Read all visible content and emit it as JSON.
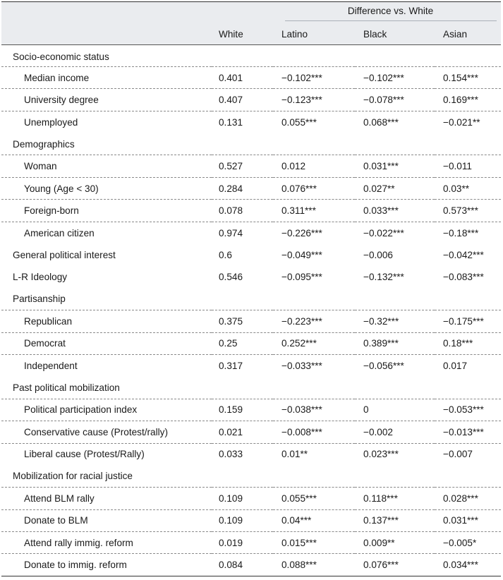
{
  "header": {
    "group_label": "Difference vs. White",
    "col_white": "White",
    "col_latino": "Latino",
    "col_black": "Black",
    "col_asian": "Asian"
  },
  "rows": [
    {
      "type": "group",
      "label": "Socio-economic status"
    },
    {
      "type": "item",
      "label": "Median income",
      "white": "0.401",
      "latino": "−0.102***",
      "black": "−0.102***",
      "asian": "0.154***"
    },
    {
      "type": "item",
      "label": "University degree",
      "white": "0.407",
      "latino": "−0.123***",
      "black": "−0.078***",
      "asian": "0.169***"
    },
    {
      "type": "item",
      "label": "Unemployed",
      "white": "0.131",
      "latino": "0.055***",
      "black": "0.068***",
      "asian": "−0.021**"
    },
    {
      "type": "group",
      "label": "Demographics"
    },
    {
      "type": "item",
      "label": "Woman",
      "white": "0.527",
      "latino": "0.012",
      "black": "0.031***",
      "asian": "−0.011"
    },
    {
      "type": "item",
      "label": "Young (Age < 30)",
      "white": "0.284",
      "latino": "0.076***",
      "black": "0.027**",
      "asian": "0.03**"
    },
    {
      "type": "item",
      "label": "Foreign-born",
      "white": "0.078",
      "latino": "0.311***",
      "black": "0.033***",
      "asian": "0.573***"
    },
    {
      "type": "item",
      "label": "American citizen",
      "white": "0.974",
      "latino": "−0.226***",
      "black": "−0.022***",
      "asian": "−0.18***"
    },
    {
      "type": "group-value",
      "label": "General political interest",
      "white": "0.6",
      "latino": "−0.049***",
      "black": "−0.006",
      "asian": "−0.042***"
    },
    {
      "type": "group-value",
      "label": "L-R Ideology",
      "white": "0.546",
      "latino": "−0.095***",
      "black": "−0.132***",
      "asian": "−0.083***"
    },
    {
      "type": "group",
      "label": "Partisanship"
    },
    {
      "type": "item",
      "label": "Republican",
      "white": "0.375",
      "latino": "−0.223***",
      "black": "−0.32***",
      "asian": "−0.175***"
    },
    {
      "type": "item",
      "label": "Democrat",
      "white": "0.25",
      "latino": "0.252***",
      "black": "0.389***",
      "asian": "0.18***"
    },
    {
      "type": "item",
      "label": "Independent",
      "white": "0.317",
      "latino": "−0.033***",
      "black": "−0.056***",
      "asian": "0.017"
    },
    {
      "type": "group",
      "label": "Past political mobilization"
    },
    {
      "type": "item",
      "label": "Political participation index",
      "white": "0.159",
      "latino": "−0.038***",
      "black": "0",
      "asian": "−0.053***"
    },
    {
      "type": "item",
      "label": "Conservative cause (Protest/rally)",
      "white": "0.021",
      "latino": "−0.008***",
      "black": "−0.002",
      "asian": "−0.013***"
    },
    {
      "type": "item",
      "label": "Liberal cause (Protest/Rally)",
      "white": "0.033",
      "latino": "0.01**",
      "black": "0.023***",
      "asian": "−0.007"
    },
    {
      "type": "group",
      "label": "Mobilization for racial justice"
    },
    {
      "type": "item",
      "label": "Attend BLM rally",
      "white": "0.109",
      "latino": "0.055***",
      "black": "0.118***",
      "asian": "0.028***"
    },
    {
      "type": "item",
      "label": "Donate to BLM",
      "white": "0.109",
      "latino": "0.04***",
      "black": "0.137***",
      "asian": "0.031***"
    },
    {
      "type": "item",
      "label": "Attend rally immig. reform",
      "white": "0.019",
      "latino": "0.015***",
      "black": "0.009**",
      "asian": "−0.005*"
    },
    {
      "type": "item",
      "label": "Donate to immig. reform",
      "white": "0.084",
      "latino": "0.088***",
      "black": "0.076***",
      "asian": "0.034***"
    }
  ]
}
